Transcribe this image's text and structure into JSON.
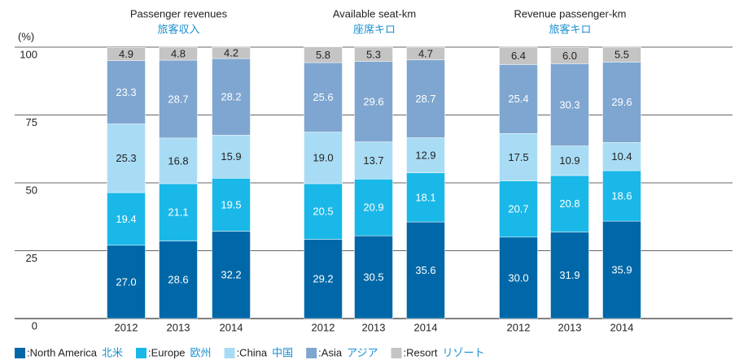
{
  "chart_data": {
    "type": "bar",
    "stacked": true,
    "unit_label": "(%)",
    "groups": [
      {
        "title": "Passenger revenues",
        "subtitle": "旅客収入"
      },
      {
        "title": "Available seat-km",
        "subtitle": "座席キロ"
      },
      {
        "title": "Revenue passenger-km",
        "subtitle": "旅客キロ"
      }
    ],
    "categories": [
      "2012",
      "2013",
      "2014",
      "2012",
      "2013",
      "2014",
      "2012",
      "2013",
      "2014"
    ],
    "series": [
      {
        "name": ":North America",
        "name_ja": "北米",
        "color": "#0068a8",
        "label_color": "#ffffff",
        "values": [
          27.0,
          28.6,
          32.2,
          29.2,
          30.5,
          35.6,
          30.0,
          31.9,
          35.9
        ],
        "value_labels": [
          "27.0",
          "28.6",
          "32.2",
          "29.2",
          "30.5",
          "35.6",
          "30.0",
          "31.9",
          "35.9"
        ]
      },
      {
        "name": ":Europe",
        "name_ja": "欧州",
        "color": "#1ab8e8",
        "label_color": "#ffffff",
        "values": [
          19.4,
          21.1,
          19.5,
          20.5,
          20.9,
          18.1,
          20.7,
          20.8,
          18.6
        ],
        "value_labels": [
          "19.4",
          "21.1",
          "19.5",
          "20.5",
          "20.9",
          "18.1",
          "20.7",
          "20.8",
          "18.6"
        ]
      },
      {
        "name": ":China",
        "name_ja": "中国",
        "color": "#a8dcf5",
        "label_color": "#222222",
        "values": [
          25.3,
          16.8,
          15.9,
          19.0,
          13.7,
          12.9,
          17.5,
          10.9,
          10.4
        ],
        "value_labels": [
          "25.3",
          "16.8",
          "15.9",
          "19.0",
          "13.7",
          "12.9",
          "17.5",
          "10.9",
          "10.4"
        ]
      },
      {
        "name": ":Asia",
        "name_ja": "アジア",
        "color": "#7ea6d0",
        "label_color": "#ffffff",
        "values": [
          23.3,
          28.7,
          28.2,
          25.6,
          29.6,
          28.7,
          25.4,
          30.3,
          29.6
        ],
        "value_labels": [
          "23.3",
          "28.7",
          "28.2",
          "25.6",
          "29.6",
          "28.7",
          "25.4",
          "30.3",
          "29.6"
        ]
      },
      {
        "name": ":Resort",
        "name_ja": "リゾート",
        "color": "#c4c4c4",
        "label_color": "#222222",
        "values": [
          4.9,
          4.8,
          4.2,
          5.8,
          5.3,
          4.7,
          6.4,
          6.0,
          5.5
        ],
        "value_labels": [
          "4.9",
          "4.8",
          "4.2",
          "5.8",
          "5.3",
          "4.7",
          "6.4",
          "6.0",
          "5.5"
        ]
      }
    ],
    "ylim": [
      0,
      100
    ],
    "yticks": [
      0,
      25,
      50,
      75,
      100
    ],
    "grid": true
  }
}
